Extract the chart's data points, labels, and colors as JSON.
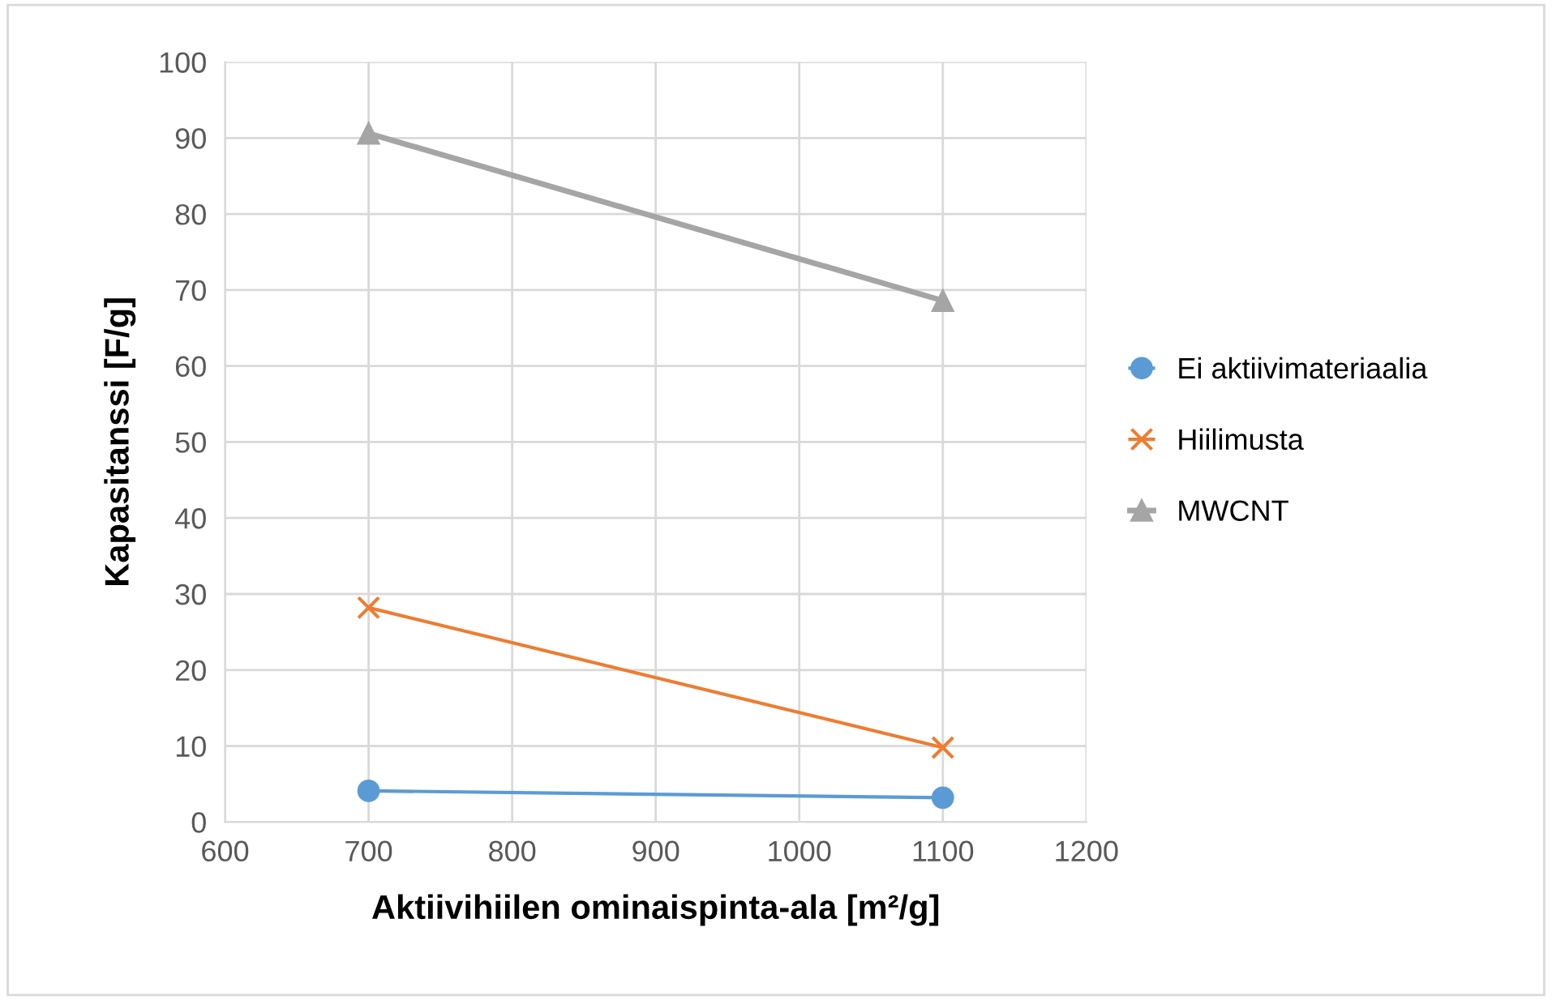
{
  "chart_data": {
    "type": "line",
    "x": [
      700,
      1100
    ],
    "xlabel": "Aktiivihiilen ominaispinta-ala [m²/g]",
    "ylabel": "Kapasitanssi [F/g]",
    "series": [
      {
        "name": "Ei aktiivimateriaalia",
        "color": "#5b9bd5",
        "marker": "circle",
        "values": [
          4.1,
          3.2
        ]
      },
      {
        "name": "Hiilimusta",
        "color": "#ed7d31",
        "marker": "cross",
        "values": [
          28.2,
          9.8
        ]
      },
      {
        "name": "MWCNT",
        "color": "#a5a5a5",
        "marker": "triangle",
        "values": [
          90.6,
          68.6
        ]
      }
    ],
    "xlim": [
      600,
      1200
    ],
    "xticks": [
      600,
      700,
      800,
      900,
      1000,
      1100,
      1200
    ],
    "ylim": [
      0,
      100
    ],
    "yticks": [
      0,
      10,
      20,
      30,
      40,
      50,
      60,
      70,
      80,
      90,
      100
    ],
    "grid": true,
    "legend": "right"
  }
}
